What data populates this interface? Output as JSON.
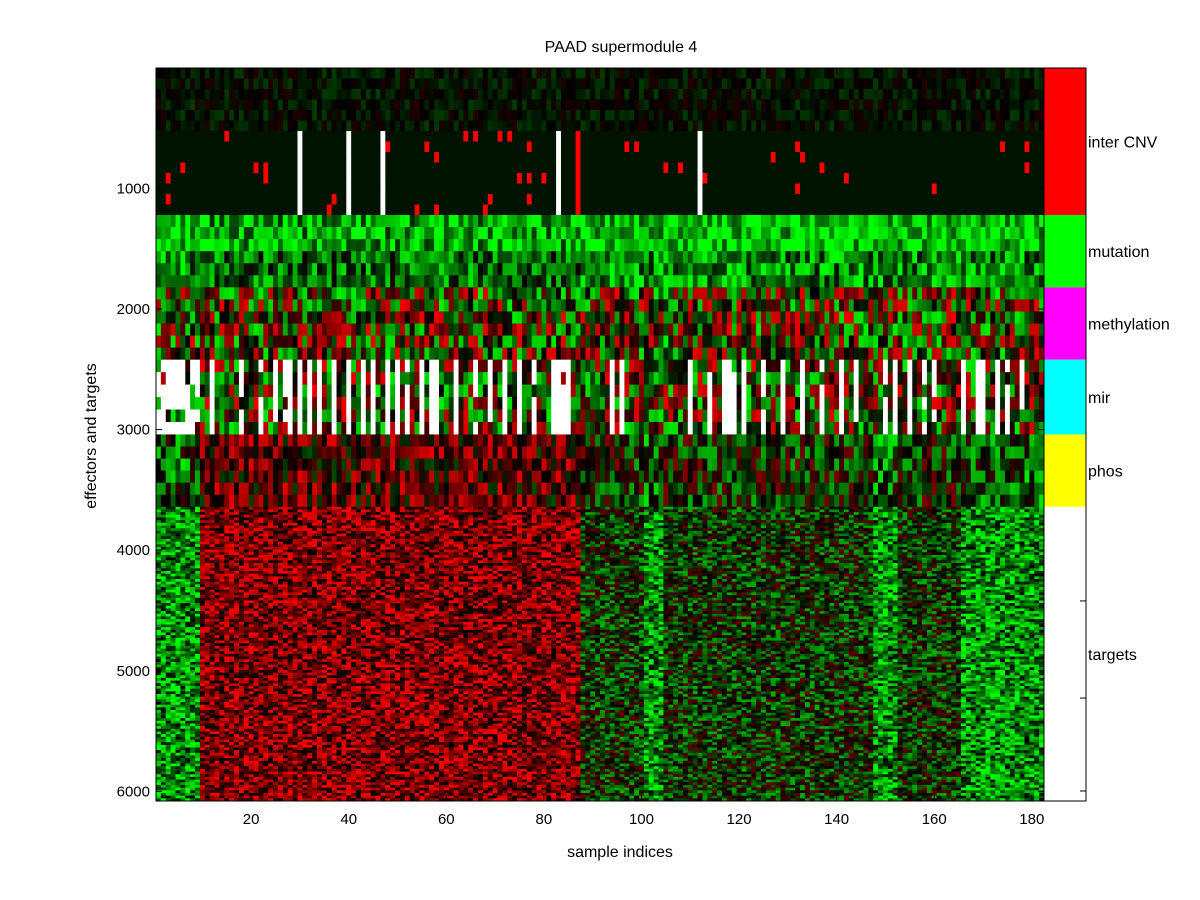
{
  "chart_data": {
    "type": "heatmap",
    "title": "PAAD supermodule 4",
    "xlabel": "sample indices",
    "ylabel": "effectors and targets",
    "xlim": [
      0.5,
      182.5
    ],
    "ylim": [
      1,
      6080
    ],
    "y_reversed": true,
    "xticks": [
      20,
      40,
      60,
      80,
      100,
      120,
      140,
      160,
      180
    ],
    "yticks": [
      1000,
      2000,
      3000,
      4000,
      5000,
      6000
    ],
    "colormap": {
      "low": "#00ff00",
      "mid": "#000000",
      "high": "#ff0000",
      "missing": "#ffffff"
    },
    "row_blocks": [
      {
        "label": "inter CNV",
        "start": 1,
        "end": 1220,
        "color": "#ff0000"
      },
      {
        "label": "mutation",
        "start": 1220,
        "end": 1820,
        "color": "#00ff00"
      },
      {
        "label": "methylation",
        "start": 1820,
        "end": 2420,
        "color": "#ff00ff"
      },
      {
        "label": "mir",
        "start": 2420,
        "end": 3040,
        "color": "#00ffff"
      },
      {
        "label": "phos",
        "start": 3040,
        "end": 3640,
        "color": "#ffff00"
      },
      {
        "label": "targets",
        "start": 3640,
        "end": 6080,
        "color": "#ffffff"
      }
    ],
    "column_profile": {
      "green_samples": [
        1,
        2,
        3,
        4,
        5,
        6,
        7,
        8,
        9,
        101,
        102,
        103,
        104,
        148,
        149,
        150,
        151,
        152,
        166,
        167,
        168,
        169,
        170,
        171,
        172,
        173,
        174,
        175,
        176,
        177,
        178,
        179,
        180,
        181,
        182
      ],
      "red_samples": [
        10,
        11,
        12,
        13,
        14,
        15,
        16,
        17,
        18,
        19,
        20,
        21,
        22,
        23,
        24,
        25,
        26,
        27,
        28,
        29,
        30,
        31,
        32,
        33,
        34,
        35,
        36,
        37,
        38,
        39,
        40,
        41,
        42,
        43,
        44,
        45,
        46,
        47,
        48,
        49,
        50,
        51,
        52,
        53,
        54,
        55,
        56,
        57,
        58,
        59,
        60,
        61,
        62,
        63,
        64,
        65,
        66,
        67,
        68,
        69,
        70,
        71,
        72,
        73,
        74,
        75,
        76,
        77,
        78,
        79,
        80,
        81,
        82,
        83,
        84,
        85,
        86,
        87
      ]
    },
    "mutation_missing_samples": [
      30,
      40,
      47,
      83,
      112
    ],
    "mutation_hit_sample": 87,
    "phos_missing_samples": [
      1,
      2,
      3,
      4,
      5,
      6,
      7,
      8,
      9,
      12,
      18,
      22,
      25,
      27,
      28,
      30,
      32,
      34,
      37,
      40,
      43,
      45,
      48,
      50,
      52,
      55,
      57,
      58,
      62,
      66,
      69,
      72,
      75,
      78,
      82,
      83,
      84,
      85,
      94,
      96,
      110,
      114,
      117,
      118,
      119,
      121,
      125,
      129,
      133,
      137,
      141,
      144,
      150,
      152,
      155,
      158,
      160,
      166,
      169,
      170,
      173,
      175,
      178
    ]
  }
}
